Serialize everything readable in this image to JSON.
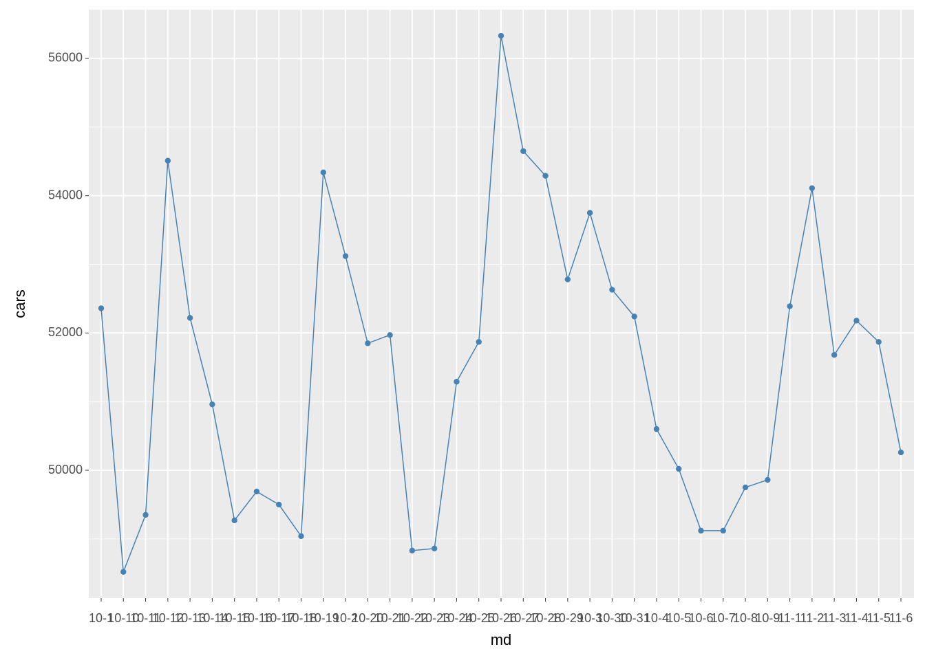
{
  "chart_data": {
    "type": "line",
    "x_label": "md",
    "y_label": "cars",
    "categories": [
      "10-1",
      "10-10",
      "10-11",
      "10-12",
      "10-13",
      "10-14",
      "10-15",
      "10-16",
      "10-17",
      "10-18",
      "10-19",
      "10-2",
      "10-20",
      "10-21",
      "10-22",
      "10-23",
      "10-24",
      "10-25",
      "10-26",
      "10-27",
      "10-28",
      "10-29",
      "10-3",
      "10-30",
      "10-31",
      "10-4",
      "10-5",
      "10-6",
      "10-7",
      "10-8",
      "10-9",
      "11-1",
      "11-2",
      "11-3",
      "11-4",
      "11-5",
      "11-6"
    ],
    "values": [
      52360,
      48520,
      49350,
      54510,
      52220,
      50960,
      49270,
      49690,
      49500,
      49040,
      54340,
      53120,
      51850,
      51970,
      48830,
      48860,
      51290,
      51870,
      56330,
      54650,
      54290,
      52780,
      53750,
      52630,
      52240,
      50600,
      50020,
      49120,
      49120,
      49750,
      49860,
      52390,
      54110,
      51680,
      52180,
      51870,
      50260
    ],
    "color": "#4682b4",
    "ylim": [
      48137,
      56711
    ],
    "yticks": [
      50000,
      52000,
      54000,
      56000
    ],
    "grid": true
  }
}
